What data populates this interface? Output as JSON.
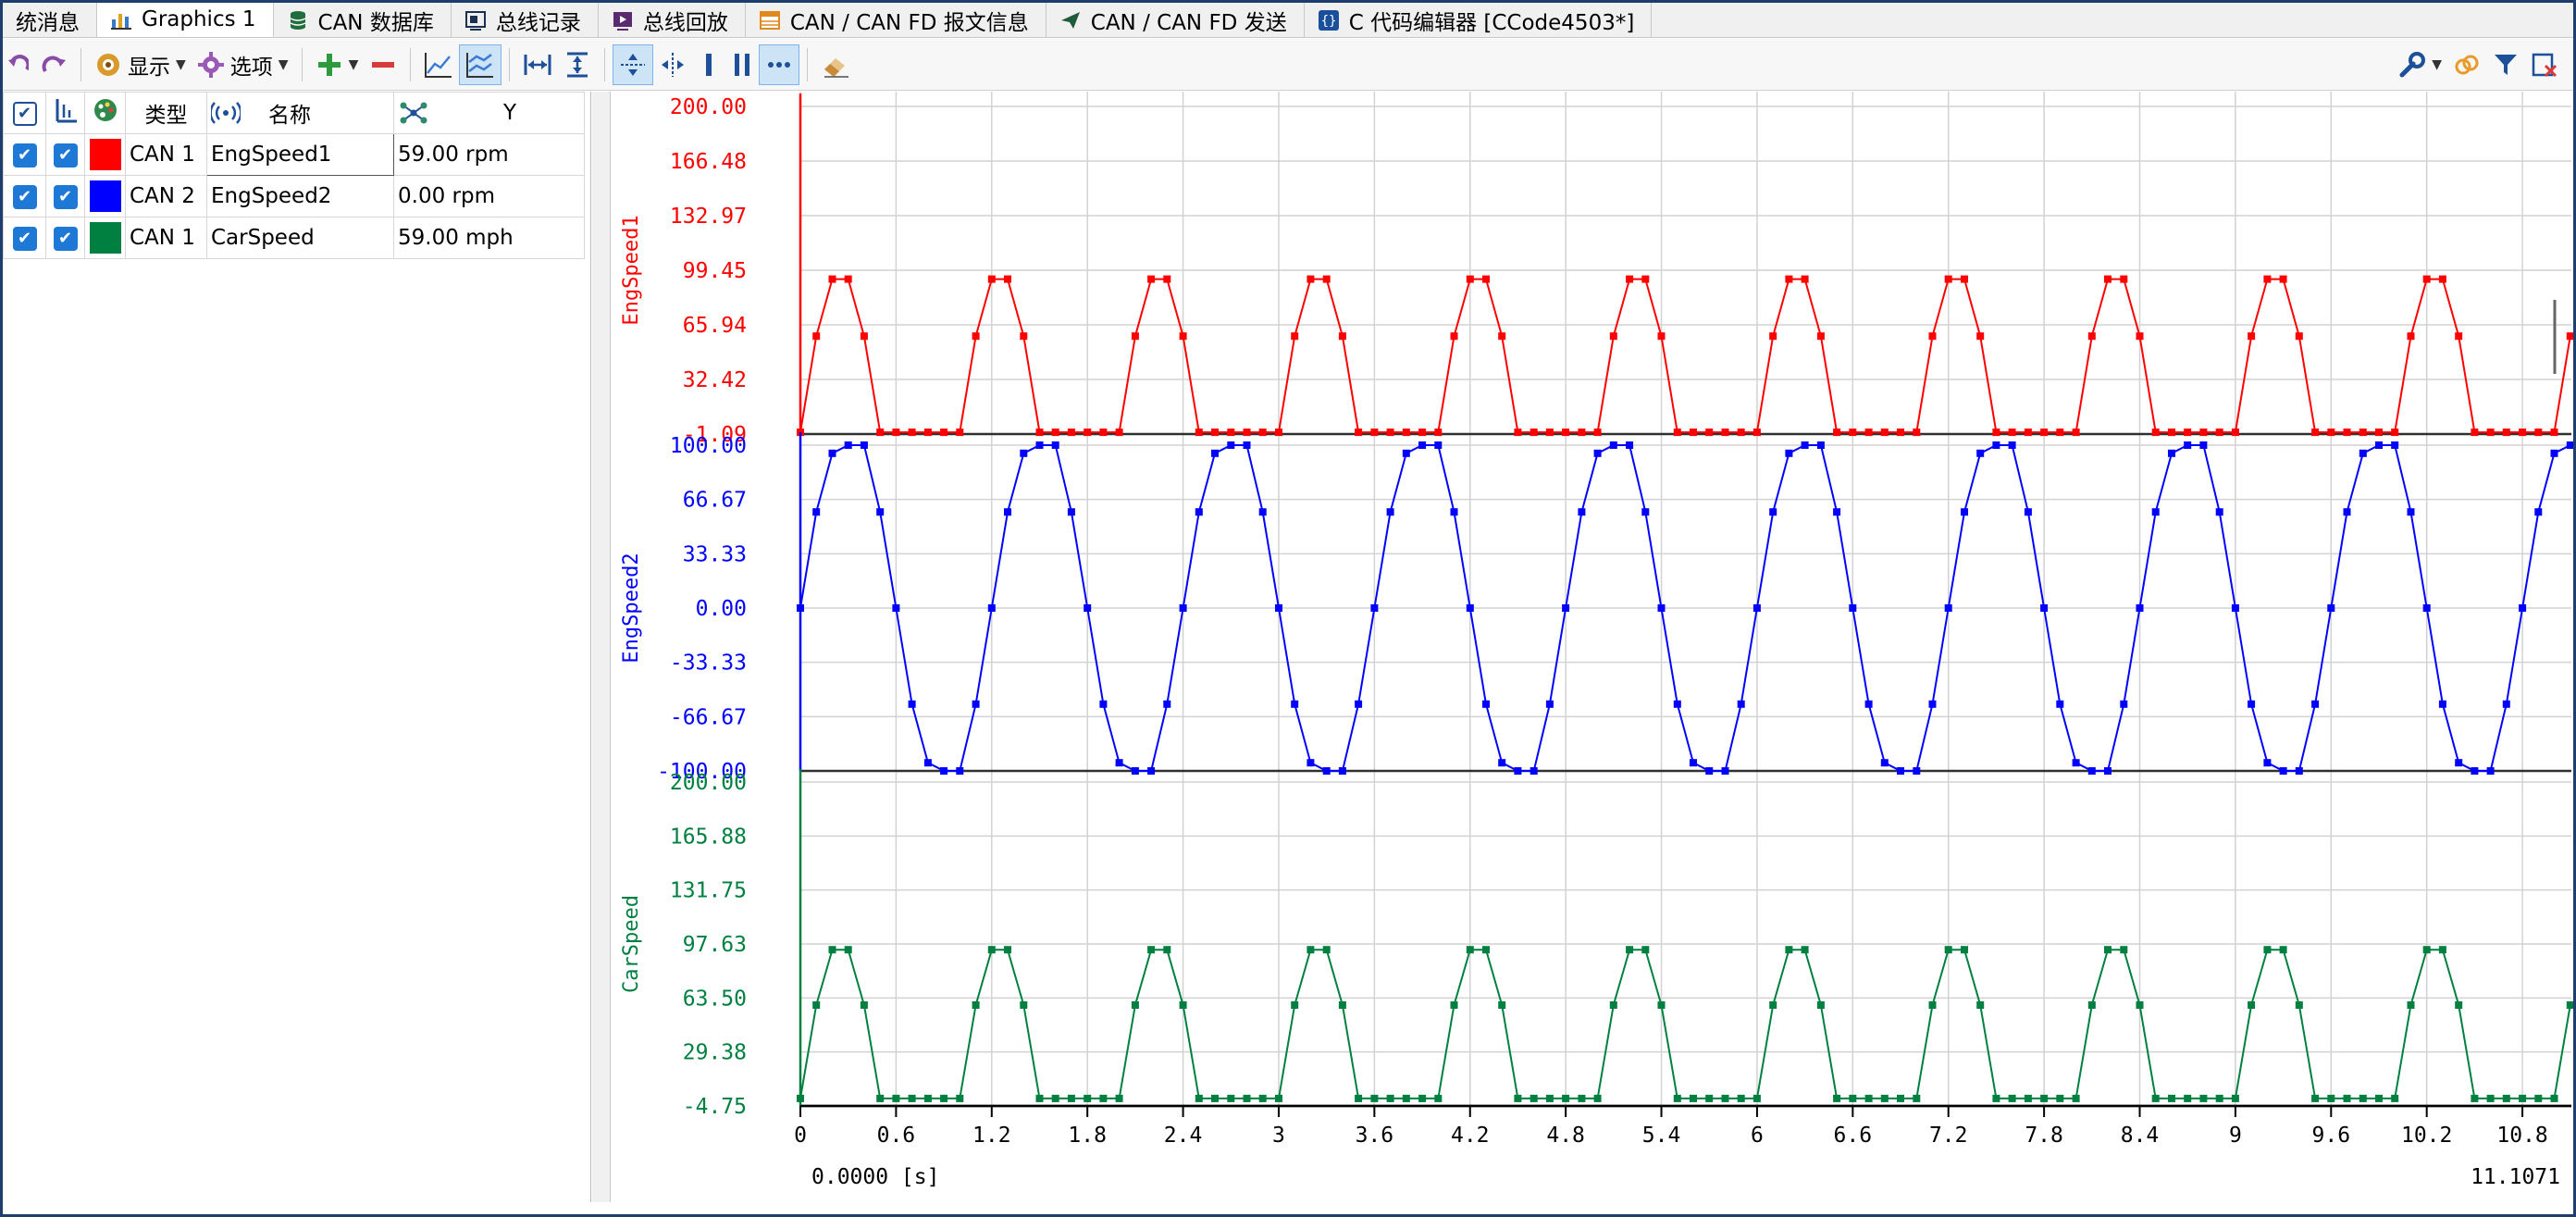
{
  "tabs": [
    {
      "label": "统消息",
      "icon": "none-icon",
      "active": false
    },
    {
      "label": "Graphics 1",
      "icon": "graph-icon",
      "active": true
    },
    {
      "label": "CAN 数据库",
      "icon": "database-icon",
      "active": false
    },
    {
      "label": "总线记录",
      "icon": "record-icon",
      "active": false
    },
    {
      "label": "总线回放",
      "icon": "playback-icon",
      "active": false
    },
    {
      "label": "CAN / CAN FD 报文信息",
      "icon": "message-table-icon",
      "active": false
    },
    {
      "label": "CAN / CAN FD 发送",
      "icon": "send-icon",
      "active": false
    },
    {
      "label": "C 代码编辑器 [CCode4503*]",
      "icon": "code-braces-icon",
      "active": false
    }
  ],
  "toolbar": {
    "display_label": "显示",
    "options_label": "选项"
  },
  "table": {
    "headers": {
      "type": "类型",
      "name": "名称",
      "y": "Y"
    },
    "rows": [
      {
        "type": "CAN 1",
        "name": "EngSpeed1",
        "value": "59.00 rpm",
        "color": "#ff0000"
      },
      {
        "type": "CAN 2",
        "name": "EngSpeed2",
        "value": "0.00 rpm",
        "color": "#0000ff"
      },
      {
        "type": "CAN 1",
        "name": "CarSpeed",
        "value": "59.00 mph",
        "color": "#008040"
      }
    ]
  },
  "chart_data": {
    "type": "line",
    "x_range": [
      0,
      11.1071
    ],
    "x_ticks": [
      "0",
      "0.6",
      "1.2",
      "1.8",
      "2.4",
      "3",
      "3.6",
      "4.2",
      "4.8",
      "5.4",
      "6",
      "6.6",
      "7.2",
      "7.8",
      "8.4",
      "9",
      "9.6",
      "10.2",
      "10.8"
    ],
    "x_start_label": "0.0000 [s]",
    "x_end_label": "11.1071",
    "grid": true,
    "sample_interval_s": 0.1,
    "panels": [
      {
        "name": "EngSpeed1",
        "color": "#ff0000",
        "ylim": [
          -1.09,
          200.0
        ],
        "y_ticks": [
          "200.00",
          "166.48",
          "132.97",
          "99.45",
          "65.94",
          "32.42",
          "-1.09"
        ],
        "period_values": [
          0,
          59,
          94,
          94,
          59,
          0,
          0,
          0,
          0,
          0
        ]
      },
      {
        "name": "EngSpeed2",
        "color": "#0000ff",
        "ylim": [
          -100.0,
          100.0
        ],
        "y_ticks": [
          "100.00",
          "66.67",
          "33.33",
          "0.00",
          "-33.33",
          "-66.67",
          "-100.00"
        ],
        "period_values": [
          0,
          59,
          95,
          100,
          100,
          59,
          0,
          -59,
          -95,
          -100,
          -100,
          -59
        ]
      },
      {
        "name": "CarSpeed",
        "color": "#008040",
        "ylim": [
          -4.75,
          200.0
        ],
        "y_ticks": [
          "200.00",
          "165.88",
          "131.75",
          "97.63",
          "63.50",
          "29.38",
          "-4.75"
        ],
        "period_values": [
          0,
          59,
          94,
          94,
          59,
          0,
          0,
          0,
          0,
          0
        ]
      }
    ]
  }
}
